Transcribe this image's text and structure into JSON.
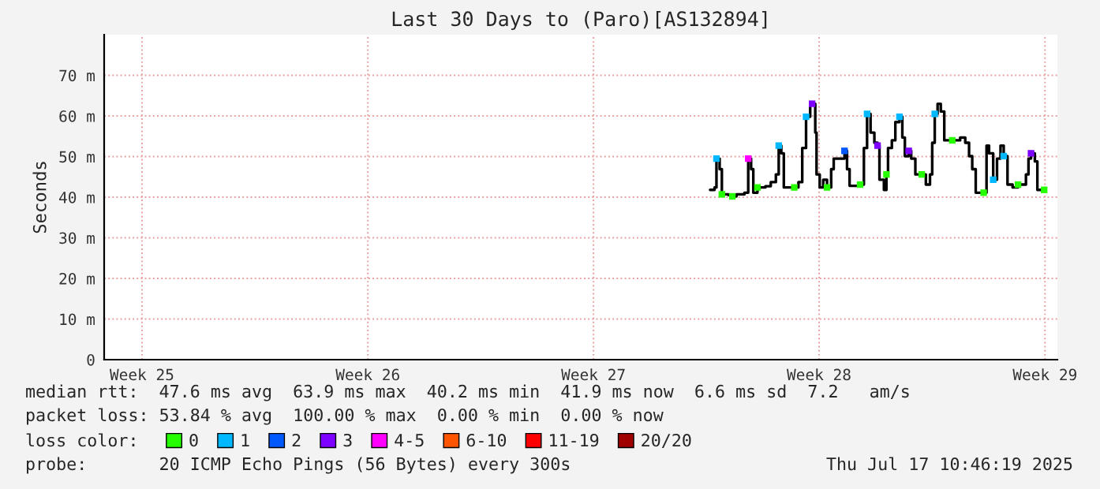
{
  "chart_data": {
    "type": "step",
    "title": "Last 30 Days to (Paro)[AS132894]",
    "ylabel": "Seconds",
    "xlim": [
      "2025-06-17T10:46",
      "2025-07-17T10:46"
    ],
    "xticks": [
      {
        "value": "2025-06-18T15:20",
        "label": "Week 25"
      },
      {
        "value": "2025-06-25T17:58",
        "label": "Week 26"
      },
      {
        "value": "2025-07-02T20:22",
        "label": "Week 27"
      },
      {
        "value": "2025-07-09T22:46",
        "label": "Week 28"
      },
      {
        "value": "2025-07-17T01:25",
        "label": "Week 29"
      }
    ],
    "ylim": [
      0,
      80
    ],
    "yticks": [
      0,
      {
        "value": 10,
        "label": "10 m"
      },
      {
        "value": 20,
        "label": "20 m"
      },
      {
        "value": 30,
        "label": "30 m"
      },
      {
        "value": 40,
        "label": "40 m"
      },
      {
        "value": 50,
        "label": "50 m"
      },
      {
        "value": 60,
        "label": "60 m"
      },
      {
        "value": 70,
        "label": "70 m"
      }
    ],
    "grid": true,
    "legend": "bottom",
    "legend_title": "loss color:",
    "series": [
      {
        "color": "#000000",
        "x": [
          "2025-07-06T12:27",
          "2025-07-06T15:49",
          "2025-07-06T17:15",
          "2025-07-06T19:39",
          "2025-07-06T21:20",
          "2025-07-07T02:22",
          "2025-07-07T05:15",
          "2025-07-07T08:22",
          "2025-07-07T14:22",
          "2025-07-07T17:15",
          "2025-07-07T19:25",
          "2025-07-07T21:05",
          "2025-07-08T00:13",
          "2025-07-08T06:13",
          "2025-07-08T10:17",
          "2025-07-08T14:08",
          "2025-07-08T16:17",
          "2025-07-08T18:13",
          "2025-07-08T20:08",
          "2025-07-09T04:03",
          "2025-07-09T07:10",
          "2025-07-09T10:03",
          "2025-07-09T12:56",
          "2025-07-09T16:03",
          "2025-07-09T19:10",
          "2025-07-09T19:53",
          "2025-07-09T20:51",
          "2025-07-09T23:15",
          "2025-07-10T01:53",
          "2025-07-10T04:46",
          "2025-07-10T07:53",
          "2025-07-10T09:49",
          "2025-07-10T13:53",
          "2025-07-10T17:58",
          "2025-07-10T19:53",
          "2025-07-10T21:49",
          "2025-07-11T05:44",
          "2025-07-11T08:37",
          "2025-07-11T11:01",
          "2025-07-11T13:39",
          "2025-07-11T16:32",
          "2025-07-11T18:56",
          "2025-07-11T20:22",
          "2025-07-11T23:44",
          "2025-07-12T01:39",
          "2025-07-12T02:51",
          "2025-07-12T05:44",
          "2025-07-12T08:22",
          "2025-07-12T11:29",
          "2025-07-12T13:39",
          "2025-07-12T15:34",
          "2025-07-12T18:27",
          "2025-07-12T20:22",
          "2025-07-12T23:29",
          "2025-07-13T04:17",
          "2025-07-13T07:25",
          "2025-07-13T10:32",
          "2025-07-13T12:13",
          "2025-07-13T14:08",
          "2025-07-13T16:17",
          "2025-07-13T18:41",
          "2025-07-13T21:20",
          "2025-07-14T03:20",
          "2025-07-14T09:20",
          "2025-07-14T13:10",
          "2025-07-14T16:03",
          "2025-07-14T18:27",
          "2025-07-14T21:05",
          "2025-07-15T03:05",
          "2025-07-15T05:15",
          "2025-07-15T07:10",
          "2025-07-15T10:17",
          "2025-07-15T13:10",
          "2025-07-15T15:49",
          "2025-07-15T18:13",
          "2025-07-15T21:05",
          "2025-07-16T00:56",
          "2025-07-16T05:01",
          "2025-07-16T08:51",
          "2025-07-16T11:01",
          "2025-07-16T12:56",
          "2025-07-16T14:51",
          "2025-07-16T17:44",
          "2025-07-16T19:39",
          "2025-07-17T00:46"
        ],
        "values": [
          41.8,
          42.4,
          49.5,
          46.9,
          40.7,
          40.5,
          40.2,
          40.7,
          41.1,
          49.5,
          46.9,
          41.1,
          42.4,
          42.7,
          43.7,
          45.6,
          52.7,
          50.8,
          42.4,
          42.4,
          43.7,
          52.1,
          59.8,
          63.0,
          63.0,
          55.9,
          45.6,
          42.4,
          44.3,
          42.4,
          46.9,
          49.5,
          49.5,
          51.4,
          46.9,
          42.8,
          43.1,
          52.1,
          60.5,
          55.9,
          53.4,
          52.7,
          44.3,
          41.8,
          45.6,
          52.1,
          54.0,
          58.5,
          59.8,
          54.7,
          50.1,
          51.4,
          49.5,
          45.6,
          45.6,
          43.1,
          45.6,
          53.4,
          60.5,
          63.0,
          61.1,
          54.0,
          54.0,
          54.7,
          53.4,
          50.1,
          46.9,
          41.1,
          41.1,
          52.7,
          50.8,
          44.3,
          49.5,
          52.7,
          50.1,
          43.1,
          42.4,
          43.1,
          43.1,
          45.6,
          49.5,
          50.8,
          48.8,
          41.8,
          41.8
        ]
      },
      {
        "type": "scatter",
        "name": "0",
        "color": "#26ff00",
        "x": [
          "2025-07-06T21:20",
          "2025-07-07T05:15",
          "2025-07-08T00:13",
          "2025-07-09T04:03",
          "2025-07-10T04:46",
          "2025-07-11T05:44",
          "2025-07-12T01:39",
          "2025-07-13T04:17",
          "2025-07-14T03:20",
          "2025-07-15T03:05",
          "2025-07-16T05:01",
          "2025-07-17T00:46"
        ],
        "values": [
          40.7,
          40.2,
          42.4,
          42.4,
          42.4,
          43.1,
          45.6,
          45.6,
          54.0,
          41.1,
          43.1,
          41.8
        ]
      },
      {
        "type": "scatter",
        "name": "1",
        "color": "#00b8ff",
        "x": [
          "2025-07-06T17:15",
          "2025-07-08T16:17",
          "2025-07-09T12:56",
          "2025-07-11T11:01",
          "2025-07-12T11:29",
          "2025-07-13T14:08",
          "2025-07-15T10:17",
          "2025-07-15T18:13"
        ],
        "values": [
          49.5,
          52.7,
          59.8,
          60.5,
          59.8,
          60.5,
          44.3,
          50.1
        ]
      },
      {
        "type": "scatter",
        "name": "2",
        "color": "#0059ff",
        "x": [
          "2025-07-10T17:58"
        ],
        "values": [
          51.4
        ]
      },
      {
        "type": "scatter",
        "name": "3",
        "color": "#7e00ff",
        "x": [
          "2025-07-09T17:29",
          "2025-07-11T18:56",
          "2025-07-12T18:27",
          "2025-07-16T14:51"
        ],
        "values": [
          63.0,
          52.7,
          51.4,
          50.8
        ]
      },
      {
        "type": "scatter",
        "name": "4-5",
        "color": "#ff00fe",
        "x": [
          "2025-07-07T17:15"
        ],
        "values": [
          49.5
        ]
      },
      {
        "type": "scatter",
        "name": "6-10",
        "color": "#ff5500"
      },
      {
        "type": "scatter",
        "name": "11-19",
        "color": "#ff0000"
      },
      {
        "type": "scatter",
        "name": "20/20",
        "color": "#a10000"
      }
    ],
    "annotations": [
      "median rtt:  47.6 ms avg  63.9 ms max  40.2 ms min  41.9 ms now  6.6 ms sd  7.2   am/s",
      "packet loss: 53.84 % avg  100.00 % max  0.00 % min  0.00 % now",
      "probe:       20 ICMP Echo Pings (56 Bytes) every 300s",
      "Thu Jul 17 10:46:19 2025"
    ]
  }
}
